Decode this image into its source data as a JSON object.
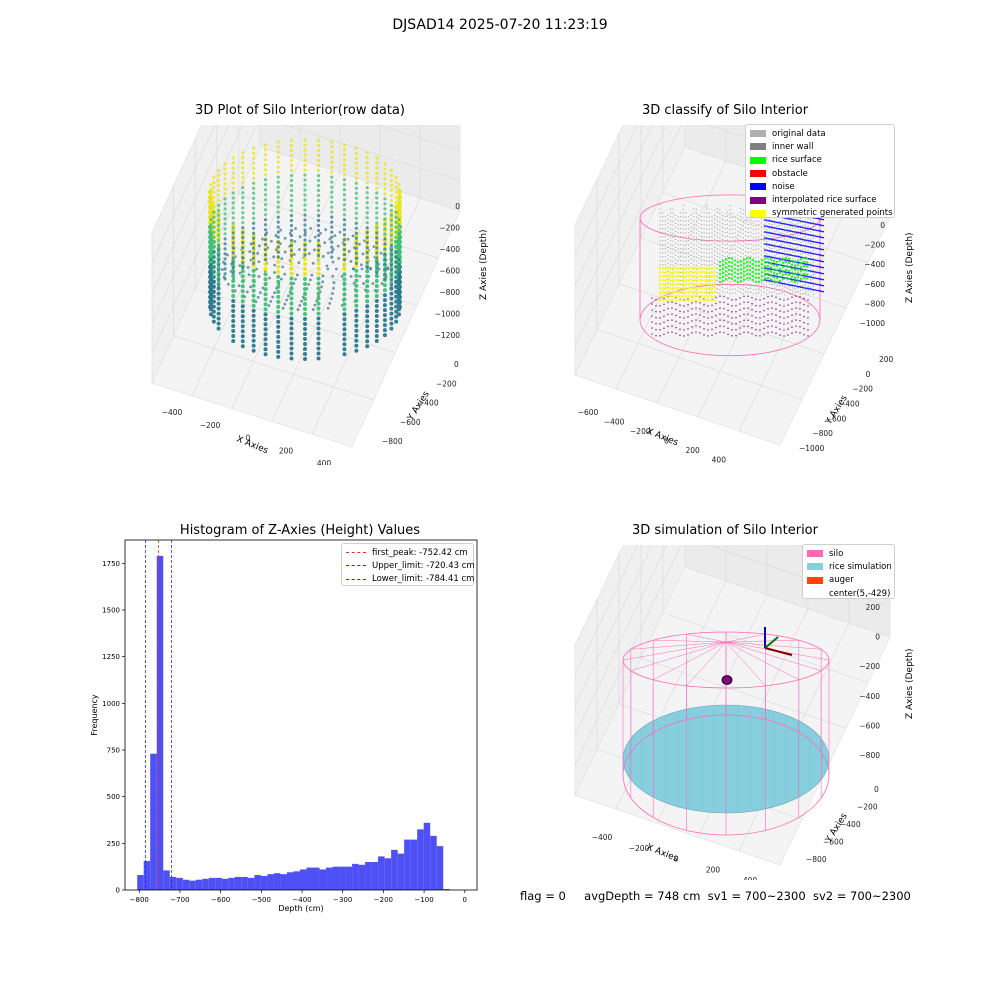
{
  "figure": {
    "suptitle": "DJSAD14 2025-07-20 11:23:19",
    "footer": {
      "flag": "flag = 0",
      "avg_depth": "avgDepth = 748 cm",
      "sv1": "sv1 = 700~2300",
      "sv2": "sv2 = 700~2300"
    }
  },
  "chart_data": [
    {
      "type": "scatter",
      "subtype": "3d",
      "title": "3D Plot of Silo Interior(row data)",
      "xlabel": "X Axies",
      "ylabel": "Y Axies",
      "zlabel": "Z Axies (Depth)",
      "x_ticks": [
        "−400",
        "−200",
        "0",
        "200",
        "400"
      ],
      "y_ticks": [
        "0",
        "−200",
        "−400",
        "−600",
        "−800"
      ],
      "z_ticks": [
        "0",
        "−200",
        "−400",
        "−600",
        "−800",
        "−1000",
        "−1200"
      ],
      "colormap": "viridis",
      "colors": {
        "top": "#e8e417",
        "mid": "#3fbf73",
        "low": "#2a788e",
        "floor": "#3b6d8f"
      }
    },
    {
      "type": "scatter",
      "subtype": "3d",
      "title": "3D classify of Silo Interior",
      "xlabel": "X Axies",
      "ylabel": "Y Axies",
      "zlabel": "Z Axies (Depth)",
      "x_ticks": [
        "−600",
        "−400",
        "−200",
        "0",
        "200",
        "400",
        "600"
      ],
      "y_ticks": [
        "200",
        "0",
        "−200",
        "−400",
        "−600",
        "−800",
        "−1000"
      ],
      "z_ticks": [
        "0",
        "−200",
        "−400",
        "−600",
        "−800",
        "−1000"
      ],
      "legend": [
        {
          "label": "original data",
          "color": "#b0b0b0"
        },
        {
          "label": "inner wall",
          "color": "#808080"
        },
        {
          "label": "rice surface",
          "color": "#00ff00"
        },
        {
          "label": "obstacle",
          "color": "#ff0000"
        },
        {
          "label": "noise",
          "color": "#0000ff"
        },
        {
          "label": "interpolated rice surface",
          "color": "#800080"
        },
        {
          "label": "symmetric generated points",
          "color": "#ffff00"
        }
      ],
      "silo_outline_color": "#ff69b4"
    },
    {
      "type": "bar",
      "subtype": "histogram",
      "title": "Histogram of Z-Axies (Height) Values",
      "xlabel": "Depth (cm)",
      "ylabel": "Frequency",
      "xlim": [
        -835,
        30
      ],
      "ylim": [
        0,
        1875
      ],
      "x_ticks": [
        -800,
        -700,
        -600,
        -500,
        -400,
        -300,
        -200,
        -100,
        0
      ],
      "y_ticks": [
        0,
        250,
        500,
        750,
        1000,
        1250,
        1500,
        1750
      ],
      "bin_width": 16,
      "bins_start": -805,
      "values": [
        80,
        155,
        730,
        1790,
        105,
        70,
        65,
        55,
        50,
        55,
        60,
        65,
        65,
        60,
        65,
        70,
        70,
        65,
        80,
        75,
        85,
        90,
        85,
        95,
        100,
        110,
        120,
        120,
        110,
        120,
        125,
        125,
        125,
        140,
        135,
        150,
        150,
        180,
        170,
        215,
        195,
        270,
        270,
        325,
        360,
        290,
        235,
        5
      ],
      "bar_color": "#4f4ff6",
      "lines": [
        {
          "label": "first_peak: -752.42 cm",
          "x": -752.42,
          "color": "#e0302a"
        },
        {
          "label": "Upper_limit: -720.43 cm",
          "x": -720.43,
          "color": "#2a2ae0"
        },
        {
          "label": "Lower_limit: -784.41 cm",
          "x": -784.41,
          "color": "#2a2ae0"
        }
      ]
    },
    {
      "type": "scatter",
      "subtype": "3d",
      "title": "3D simulation of Silo Interior",
      "xlabel": "X Axies",
      "ylabel": "Y Axies",
      "zlabel": "Z Axies (Depth)",
      "x_ticks": [
        "−400",
        "−200",
        "0",
        "200",
        "400"
      ],
      "y_ticks": [
        "0",
        "−200",
        "−400",
        "−600",
        "−800"
      ],
      "z_ticks": [
        "200",
        "0",
        "−200",
        "−400",
        "−600",
        "−800"
      ],
      "legend": [
        {
          "label": "silo",
          "color": "#ff69b4"
        },
        {
          "label": "rice simulation",
          "color": "#87cedf"
        },
        {
          "label": "auger",
          "color": "#ff4500"
        },
        {
          "label": "center(5,-429)",
          "color": "none"
        }
      ],
      "center": [
        5,
        -429
      ]
    }
  ]
}
